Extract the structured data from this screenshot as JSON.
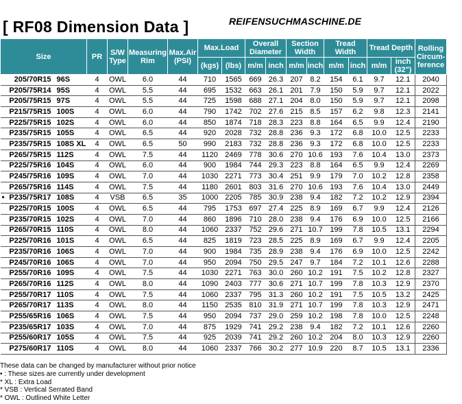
{
  "header": {
    "title": "[ RF08  Dimension Data ]",
    "site": "REIFENSUCHMASCHINE.DE"
  },
  "columns": {
    "size": "Size",
    "pr": "PR",
    "sw_type": "S/W Type",
    "rim": "Measuring Rim",
    "max_air": "Max.Air (PSI)",
    "max_load": "Max.Load",
    "kgs": "(kgs)",
    "lbs": "(lbs)",
    "overall_diameter": "Overall Diameter",
    "section_width": "Section Width",
    "tread_width": "Tread Width",
    "tread_depth": "Tread Depth",
    "mm": "m/m",
    "inch": "inch",
    "inch32": "inch (32\")",
    "rolling": "Rolling Circum-ference"
  },
  "rows": [
    {
      "mark": "",
      "size": "205/70R15",
      "load": "96S",
      "pr": "4",
      "sw": "OWL",
      "rim": "6.0",
      "air": "44",
      "kgs": "710",
      "lbs": "1565",
      "od_mm": "669",
      "od_in": "26.3",
      "sw_mm": "207",
      "sw_in": "8.2",
      "tw_mm": "154",
      "tw_in": "6.1",
      "td_mm": "9.7",
      "td_in": "12.1",
      "circ": "2040"
    },
    {
      "mark": "",
      "size": "P205/75R14",
      "load": "95S",
      "pr": "4",
      "sw": "OWL",
      "rim": "5.5",
      "air": "44",
      "kgs": "695",
      "lbs": "1532",
      "od_mm": "663",
      "od_in": "26.1",
      "sw_mm": "201",
      "sw_in": "7.9",
      "tw_mm": "150",
      "tw_in": "5.9",
      "td_mm": "9.7",
      "td_in": "12.1",
      "circ": "2022"
    },
    {
      "mark": "",
      "size": "P205/75R15",
      "load": "97S",
      "pr": "4",
      "sw": "OWL",
      "rim": "5.5",
      "air": "44",
      "kgs": "725",
      "lbs": "1598",
      "od_mm": "688",
      "od_in": "27.1",
      "sw_mm": "204",
      "sw_in": "8.0",
      "tw_mm": "150",
      "tw_in": "5.9",
      "td_mm": "9.7",
      "td_in": "12.1",
      "circ": "2098"
    },
    {
      "mark": "",
      "size": "P215/75R15",
      "load": "100S",
      "pr": "4",
      "sw": "OWL",
      "rim": "6.0",
      "air": "44",
      "kgs": "790",
      "lbs": "1742",
      "od_mm": "702",
      "od_in": "27.6",
      "sw_mm": "215",
      "sw_in": "8.5",
      "tw_mm": "157",
      "tw_in": "6.2",
      "td_mm": "9.8",
      "td_in": "12.3",
      "circ": "2141"
    },
    {
      "mark": "",
      "size": "P225/75R15",
      "load": "102S",
      "pr": "4",
      "sw": "OWL",
      "rim": "6.0",
      "air": "44",
      "kgs": "850",
      "lbs": "1874",
      "od_mm": "718",
      "od_in": "28.3",
      "sw_mm": "223",
      "sw_in": "8.8",
      "tw_mm": "164",
      "tw_in": "6.5",
      "td_mm": "9.9",
      "td_in": "12.4",
      "circ": "2190"
    },
    {
      "mark": "",
      "size": "P235/75R15",
      "load": "105S",
      "pr": "4",
      "sw": "OWL",
      "rim": "6.5",
      "air": "44",
      "kgs": "920",
      "lbs": "2028",
      "od_mm": "732",
      "od_in": "28.8",
      "sw_mm": "236",
      "sw_in": "9.3",
      "tw_mm": "172",
      "tw_in": "6.8",
      "td_mm": "10.0",
      "td_in": "12.5",
      "circ": "2233"
    },
    {
      "mark": "",
      "size": "P235/75R15",
      "load": "108S XL",
      "pr": "4",
      "sw": "OWL",
      "rim": "6.5",
      "air": "50",
      "kgs": "990",
      "lbs": "2183",
      "od_mm": "732",
      "od_in": "28.8",
      "sw_mm": "236",
      "sw_in": "9.3",
      "tw_mm": "172",
      "tw_in": "6.8",
      "td_mm": "10.0",
      "td_in": "12.5",
      "circ": "2233"
    },
    {
      "mark": "",
      "size": "P265/75R15",
      "load": "112S",
      "pr": "4",
      "sw": "OWL",
      "rim": "7.5",
      "air": "44",
      "kgs": "1120",
      "lbs": "2469",
      "od_mm": "778",
      "od_in": "30.6",
      "sw_mm": "270",
      "sw_in": "10.6",
      "tw_mm": "193",
      "tw_in": "7.6",
      "td_mm": "10.4",
      "td_in": "13.0",
      "circ": "2373"
    },
    {
      "mark": "",
      "size": "P225/75R16",
      "load": "104S",
      "pr": "4",
      "sw": "OWL",
      "rim": "6.0",
      "air": "44",
      "kgs": "900",
      "lbs": "1984",
      "od_mm": "744",
      "od_in": "29.3",
      "sw_mm": "223",
      "sw_in": "8.8",
      "tw_mm": "164",
      "tw_in": "6.5",
      "td_mm": "9.9",
      "td_in": "12.4",
      "circ": "2269"
    },
    {
      "mark": "",
      "size": "P245/75R16",
      "load": "109S",
      "pr": "4",
      "sw": "OWL",
      "rim": "7.0",
      "air": "44",
      "kgs": "1030",
      "lbs": "2271",
      "od_mm": "773",
      "od_in": "30.4",
      "sw_mm": "251",
      "sw_in": "9.9",
      "tw_mm": "179",
      "tw_in": "7.0",
      "td_mm": "10.2",
      "td_in": "12.8",
      "circ": "2358"
    },
    {
      "mark": "",
      "size": "P265/75R16",
      "load": "114S",
      "pr": "4",
      "sw": "OWL",
      "rim": "7.5",
      "air": "44",
      "kgs": "1180",
      "lbs": "2601",
      "od_mm": "803",
      "od_in": "31.6",
      "sw_mm": "270",
      "sw_in": "10.6",
      "tw_mm": "193",
      "tw_in": "7.6",
      "td_mm": "10.4",
      "td_in": "13.0",
      "circ": "2449"
    },
    {
      "mark": "•",
      "size": "P235/75R17",
      "load": "108S",
      "pr": "4",
      "sw": "VSB",
      "rim": "6.5",
      "air": "35",
      "kgs": "1000",
      "lbs": "2205",
      "od_mm": "785",
      "od_in": "30.9",
      "sw_mm": "238",
      "sw_in": "9.4",
      "tw_mm": "182",
      "tw_in": "7.2",
      "td_mm": "10.2",
      "td_in": "12.9",
      "circ": "2394"
    },
    {
      "mark": "",
      "size": "P225/70R15",
      "load": "100S",
      "pr": "4",
      "sw": "OWL",
      "rim": "6.5",
      "air": "44",
      "kgs": "795",
      "lbs": "1753",
      "od_mm": "697",
      "od_in": "27.4",
      "sw_mm": "225",
      "sw_in": "8.9",
      "tw_mm": "169",
      "tw_in": "6.7",
      "td_mm": "9.9",
      "td_in": "12.4",
      "circ": "2126"
    },
    {
      "mark": "",
      "size": "P235/70R15",
      "load": "102S",
      "pr": "4",
      "sw": "OWL",
      "rim": "7.0",
      "air": "44",
      "kgs": "860",
      "lbs": "1896",
      "od_mm": "710",
      "od_in": "28.0",
      "sw_mm": "238",
      "sw_in": "9.4",
      "tw_mm": "176",
      "tw_in": "6.9",
      "td_mm": "10.0",
      "td_in": "12.5",
      "circ": "2166"
    },
    {
      "mark": "",
      "size": "P265/70R15",
      "load": "110S",
      "pr": "4",
      "sw": "OWL",
      "rim": "8.0",
      "air": "44",
      "kgs": "1060",
      "lbs": "2337",
      "od_mm": "752",
      "od_in": "29.6",
      "sw_mm": "271",
      "sw_in": "10.7",
      "tw_mm": "199",
      "tw_in": "7.8",
      "td_mm": "10.5",
      "td_in": "13.1",
      "circ": "2294"
    },
    {
      "mark": "",
      "size": "P225/70R16",
      "load": "101S",
      "pr": "4",
      "sw": "OWL",
      "rim": "6.5",
      "air": "44",
      "kgs": "825",
      "lbs": "1819",
      "od_mm": "723",
      "od_in": "28.5",
      "sw_mm": "225",
      "sw_in": "8.9",
      "tw_mm": "169",
      "tw_in": "6.7",
      "td_mm": "9.9",
      "td_in": "12.4",
      "circ": "2205"
    },
    {
      "mark": "",
      "size": "P235/70R16",
      "load": "106S",
      "pr": "4",
      "sw": "OWL",
      "rim": "7.0",
      "air": "44",
      "kgs": "900",
      "lbs": "1984",
      "od_mm": "735",
      "od_in": "28.9",
      "sw_mm": "238",
      "sw_in": "9.4",
      "tw_mm": "176",
      "tw_in": "6.9",
      "td_mm": "10.0",
      "td_in": "12.5",
      "circ": "2242"
    },
    {
      "mark": "",
      "size": "P245/70R16",
      "load": "106S",
      "pr": "4",
      "sw": "OWL",
      "rim": "7.0",
      "air": "44",
      "kgs": "950",
      "lbs": "2094",
      "od_mm": "750",
      "od_in": "29.5",
      "sw_mm": "247",
      "sw_in": "9.7",
      "tw_mm": "184",
      "tw_in": "7.2",
      "td_mm": "10.1",
      "td_in": "12.6",
      "circ": "2288"
    },
    {
      "mark": "",
      "size": "P255/70R16",
      "load": "109S",
      "pr": "4",
      "sw": "OWL",
      "rim": "7.5",
      "air": "44",
      "kgs": "1030",
      "lbs": "2271",
      "od_mm": "763",
      "od_in": "30.0",
      "sw_mm": "260",
      "sw_in": "10.2",
      "tw_mm": "191",
      "tw_in": "7.5",
      "td_mm": "10.2",
      "td_in": "12.8",
      "circ": "2327"
    },
    {
      "mark": "",
      "size": "P265/70R16",
      "load": "112S",
      "pr": "4",
      "sw": "OWL",
      "rim": "8.0",
      "air": "44",
      "kgs": "1090",
      "lbs": "2403",
      "od_mm": "777",
      "od_in": "30.6",
      "sw_mm": "271",
      "sw_in": "10.7",
      "tw_mm": "199",
      "tw_in": "7.8",
      "td_mm": "10.3",
      "td_in": "12.9",
      "circ": "2370"
    },
    {
      "mark": "",
      "size": "P255/70R17",
      "load": "110S",
      "pr": "4",
      "sw": "OWL",
      "rim": "7.5",
      "air": "44",
      "kgs": "1060",
      "lbs": "2337",
      "od_mm": "795",
      "od_in": "31.3",
      "sw_mm": "260",
      "sw_in": "10.2",
      "tw_mm": "191",
      "tw_in": "7.5",
      "td_mm": "10.5",
      "td_in": "13.2",
      "circ": "2425"
    },
    {
      "mark": "",
      "size": "P265/70R17",
      "load": "113S",
      "pr": "4",
      "sw": "OWL",
      "rim": "8.0",
      "air": "44",
      "kgs": "1150",
      "lbs": "2535",
      "od_mm": "810",
      "od_in": "31.9",
      "sw_mm": "271",
      "sw_in": "10.7",
      "tw_mm": "199",
      "tw_in": "7.8",
      "td_mm": "10.3",
      "td_in": "12.9",
      "circ": "2471"
    },
    {
      "mark": "",
      "size": "P255/65R16",
      "load": "106S",
      "pr": "4",
      "sw": "OWL",
      "rim": "7.5",
      "air": "44",
      "kgs": "950",
      "lbs": "2094",
      "od_mm": "737",
      "od_in": "29.0",
      "sw_mm": "259",
      "sw_in": "10.2",
      "tw_mm": "198",
      "tw_in": "7.8",
      "td_mm": "10.0",
      "td_in": "12.5",
      "circ": "2248"
    },
    {
      "mark": "",
      "size": "P235/65R17",
      "load": "103S",
      "pr": "4",
      "sw": "OWL",
      "rim": "7.0",
      "air": "44",
      "kgs": "875",
      "lbs": "1929",
      "od_mm": "741",
      "od_in": "29.2",
      "sw_mm": "238",
      "sw_in": "9.4",
      "tw_mm": "182",
      "tw_in": "7.2",
      "td_mm": "10.1",
      "td_in": "12.6",
      "circ": "2260"
    },
    {
      "mark": "",
      "size": "P255/60R17",
      "load": "105S",
      "pr": "4",
      "sw": "OWL",
      "rim": "7.5",
      "air": "44",
      "kgs": "925",
      "lbs": "2039",
      "od_mm": "741",
      "od_in": "29.2",
      "sw_mm": "260",
      "sw_in": "10.2",
      "tw_mm": "204",
      "tw_in": "8.0",
      "td_mm": "10.3",
      "td_in": "12.9",
      "circ": "2260"
    },
    {
      "mark": "",
      "size": "P275/60R17",
      "load": "110S",
      "pr": "4",
      "sw": "OWL",
      "rim": "8.0",
      "air": "44",
      "kgs": "1060",
      "lbs": "2337",
      "od_mm": "766",
      "od_in": "30.2",
      "sw_mm": "277",
      "sw_in": "10.9",
      "tw_mm": "220",
      "tw_in": "8.7",
      "td_mm": "10.5",
      "td_in": "13.1",
      "circ": "2336"
    }
  ],
  "notes": [
    "These data can be changed by manufacturer without prior notice",
    "• : These sizes are currently under development",
    "* XL : Extra Load",
    "* VSB : Vertical Serrated Band",
    "* OWL : Outlined White Letter"
  ],
  "colors": {
    "header_bg": "#2e8c98",
    "header_text": "#ffffff"
  }
}
